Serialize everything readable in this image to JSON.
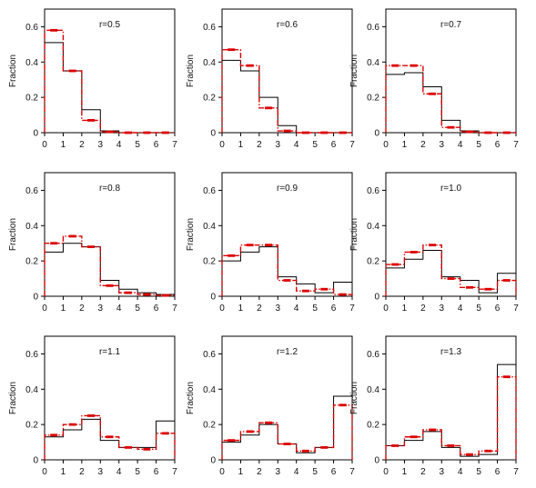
{
  "chart_data": [
    {
      "type": "histogram",
      "annotation": "r=0.5",
      "ylabel": "Fraction",
      "bin_edges": [
        0,
        1,
        2,
        3,
        4,
        5,
        6,
        7
      ],
      "x_ticks": [
        "0",
        "1",
        "2",
        "3",
        "4",
        "5",
        "6",
        "7"
      ],
      "y_ticks": [
        "0",
        "0.2",
        "0.4",
        "0.6"
      ],
      "ylim": [
        0,
        0.7
      ],
      "xlim": [
        0,
        7
      ],
      "series": [
        {
          "style": "solid",
          "color": "#000000",
          "values": [
            0.51,
            0.35,
            0.13,
            0.01,
            0.0,
            0.0,
            0.0
          ]
        },
        {
          "style": "dashed",
          "color": "#dd0000",
          "values": [
            0.58,
            0.35,
            0.07,
            0.005,
            0.0,
            0.0,
            0.0
          ]
        }
      ]
    },
    {
      "type": "histogram",
      "annotation": "r=0.6",
      "ylabel": "Fraction",
      "bin_edges": [
        0,
        1,
        2,
        3,
        4,
        5,
        6,
        7
      ],
      "x_ticks": [
        "0",
        "1",
        "2",
        "3",
        "4",
        "5",
        "6",
        "7"
      ],
      "y_ticks": [
        "0",
        "0.2",
        "0.4",
        "0.6"
      ],
      "ylim": [
        0,
        0.7
      ],
      "xlim": [
        0,
        7
      ],
      "series": [
        {
          "style": "solid",
          "color": "#000000",
          "values": [
            0.41,
            0.35,
            0.2,
            0.04,
            0.0,
            0.0,
            0.0
          ]
        },
        {
          "style": "dashed",
          "color": "#dd0000",
          "values": [
            0.47,
            0.38,
            0.14,
            0.01,
            0.0,
            0.0,
            0.0
          ]
        }
      ]
    },
    {
      "type": "histogram",
      "annotation": "r=0.7",
      "ylabel": "Fraction",
      "bin_edges": [
        0,
        1,
        2,
        3,
        4,
        5,
        6,
        7
      ],
      "x_ticks": [
        "0",
        "1",
        "2",
        "3",
        "4",
        "5",
        "6",
        "7"
      ],
      "y_ticks": [
        "0",
        "0.2",
        "0.4",
        "0.6"
      ],
      "ylim": [
        0,
        0.7
      ],
      "xlim": [
        0,
        7
      ],
      "series": [
        {
          "style": "solid",
          "color": "#000000",
          "values": [
            0.33,
            0.34,
            0.26,
            0.07,
            0.01,
            0.0,
            0.0
          ]
        },
        {
          "style": "dashed",
          "color": "#dd0000",
          "values": [
            0.38,
            0.38,
            0.22,
            0.03,
            0.005,
            0.0,
            0.0
          ]
        }
      ]
    },
    {
      "type": "histogram",
      "annotation": "r=0.8",
      "ylabel": "Fraction",
      "bin_edges": [
        0,
        1,
        2,
        3,
        4,
        5,
        6,
        7
      ],
      "x_ticks": [
        "0",
        "1",
        "2",
        "3",
        "4",
        "5",
        "6",
        "7"
      ],
      "y_ticks": [
        "0",
        "0.2",
        "0.4",
        "0.6"
      ],
      "ylim": [
        0,
        0.7
      ],
      "xlim": [
        0,
        7
      ],
      "series": [
        {
          "style": "solid",
          "color": "#000000",
          "values": [
            0.25,
            0.3,
            0.28,
            0.09,
            0.04,
            0.02,
            0.01
          ]
        },
        {
          "style": "dashed",
          "color": "#dd0000",
          "values": [
            0.3,
            0.34,
            0.28,
            0.06,
            0.02,
            0.01,
            0.005
          ]
        }
      ]
    },
    {
      "type": "histogram",
      "annotation": "r=0.9",
      "ylabel": "Fraction",
      "bin_edges": [
        0,
        1,
        2,
        3,
        4,
        5,
        6,
        7
      ],
      "x_ticks": [
        "0",
        "1",
        "2",
        "3",
        "4",
        "5",
        "6",
        "7"
      ],
      "y_ticks": [
        "0",
        "0.2",
        "0.4",
        "0.6"
      ],
      "ylim": [
        0,
        0.7
      ],
      "xlim": [
        0,
        7
      ],
      "series": [
        {
          "style": "solid",
          "color": "#000000",
          "values": [
            0.2,
            0.25,
            0.28,
            0.11,
            0.07,
            0.02,
            0.08
          ]
        },
        {
          "style": "dashed",
          "color": "#dd0000",
          "values": [
            0.23,
            0.29,
            0.29,
            0.09,
            0.03,
            0.04,
            0.01
          ]
        }
      ]
    },
    {
      "type": "histogram",
      "annotation": "r=1.0",
      "ylabel": "Fraction",
      "bin_edges": [
        0,
        1,
        2,
        3,
        4,
        5,
        6,
        7
      ],
      "x_ticks": [
        "0",
        "1",
        "2",
        "3",
        "4",
        "5",
        "6",
        "7"
      ],
      "y_ticks": [
        "0",
        "0.2",
        "0.4",
        "0.6"
      ],
      "ylim": [
        0,
        0.7
      ],
      "xlim": [
        0,
        7
      ],
      "series": [
        {
          "style": "solid",
          "color": "#000000",
          "values": [
            0.16,
            0.21,
            0.26,
            0.11,
            0.09,
            0.02,
            0.13
          ]
        },
        {
          "style": "dashed",
          "color": "#dd0000",
          "values": [
            0.18,
            0.25,
            0.29,
            0.1,
            0.05,
            0.04,
            0.09
          ]
        }
      ]
    },
    {
      "type": "histogram",
      "annotation": "r=1.1",
      "ylabel": "Fraction",
      "bin_edges": [
        0,
        1,
        2,
        3,
        4,
        5,
        6,
        7
      ],
      "x_ticks": [
        "0",
        "1",
        "2",
        "3",
        "4",
        "5",
        "6",
        "7"
      ],
      "y_ticks": [
        "0",
        "0.2",
        "0.4",
        "0.6"
      ],
      "ylim": [
        0,
        0.7
      ],
      "xlim": [
        0,
        7
      ],
      "series": [
        {
          "style": "solid",
          "color": "#000000",
          "values": [
            0.13,
            0.17,
            0.23,
            0.11,
            0.07,
            0.07,
            0.22
          ]
        },
        {
          "style": "dashed",
          "color": "#dd0000",
          "values": [
            0.14,
            0.2,
            0.25,
            0.13,
            0.07,
            0.06,
            0.15
          ]
        }
      ]
    },
    {
      "type": "histogram",
      "annotation": "r=1.2",
      "ylabel": "Fraction",
      "bin_edges": [
        0,
        1,
        2,
        3,
        4,
        5,
        6,
        7
      ],
      "x_ticks": [
        "0",
        "1",
        "2",
        "3",
        "4",
        "5",
        "6",
        "7"
      ],
      "y_ticks": [
        "0",
        "0.2",
        "0.4",
        "0.6"
      ],
      "ylim": [
        0,
        0.7
      ],
      "xlim": [
        0,
        7
      ],
      "series": [
        {
          "style": "solid",
          "color": "#000000",
          "values": [
            0.1,
            0.14,
            0.2,
            0.09,
            0.04,
            0.07,
            0.36
          ]
        },
        {
          "style": "dashed",
          "color": "#dd0000",
          "values": [
            0.11,
            0.16,
            0.21,
            0.09,
            0.05,
            0.07,
            0.31
          ]
        }
      ]
    },
    {
      "type": "histogram",
      "annotation": "r=1.3",
      "ylabel": "Fraction",
      "bin_edges": [
        0,
        1,
        2,
        3,
        4,
        5,
        6,
        7
      ],
      "x_ticks": [
        "0",
        "1",
        "2",
        "3",
        "4",
        "5",
        "6",
        "7"
      ],
      "y_ticks": [
        "0",
        "0.2",
        "0.4",
        "0.6"
      ],
      "ylim": [
        0,
        0.7
      ],
      "xlim": [
        0,
        7
      ],
      "series": [
        {
          "style": "solid",
          "color": "#000000",
          "values": [
            0.08,
            0.11,
            0.16,
            0.07,
            0.02,
            0.03,
            0.54
          ]
        },
        {
          "style": "dashed",
          "color": "#dd0000",
          "values": [
            0.08,
            0.13,
            0.17,
            0.08,
            0.03,
            0.05,
            0.47
          ]
        }
      ]
    }
  ]
}
